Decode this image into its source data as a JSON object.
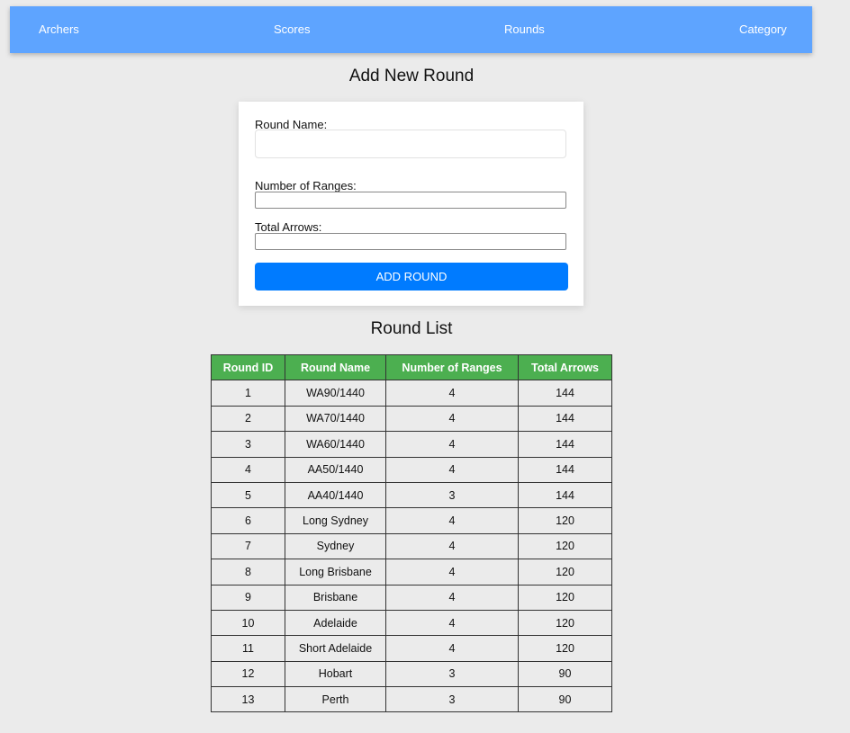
{
  "nav": {
    "items": [
      {
        "label": "Archers"
      },
      {
        "label": "Scores"
      },
      {
        "label": "Rounds"
      },
      {
        "label": "Category"
      }
    ]
  },
  "form": {
    "title": "Add New Round",
    "round_name_label": "Round Name:",
    "round_name_value": "",
    "ranges_label": "Number of Ranges:",
    "ranges_value": "",
    "arrows_label": "Total Arrows:",
    "arrows_value": "",
    "submit_label": "ADD ROUND"
  },
  "list": {
    "title": "Round List",
    "columns": [
      "Round ID",
      "Round Name",
      "Number of Ranges",
      "Total Arrows"
    ],
    "rows": [
      [
        "1",
        "WA90/1440",
        "4",
        "144"
      ],
      [
        "2",
        "WA70/1440",
        "4",
        "144"
      ],
      [
        "3",
        "WA60/1440",
        "4",
        "144"
      ],
      [
        "4",
        "AA50/1440",
        "4",
        "144"
      ],
      [
        "5",
        "AA40/1440",
        "3",
        "144"
      ],
      [
        "6",
        "Long Sydney",
        "4",
        "120"
      ],
      [
        "7",
        "Sydney",
        "4",
        "120"
      ],
      [
        "8",
        "Long Brisbane",
        "4",
        "120"
      ],
      [
        "9",
        "Brisbane",
        "4",
        "120"
      ],
      [
        "10",
        "Adelaide",
        "4",
        "120"
      ],
      [
        "11",
        "Short Adelaide",
        "4",
        "120"
      ],
      [
        "12",
        "Hobart",
        "3",
        "90"
      ],
      [
        "13",
        "Perth",
        "3",
        "90"
      ]
    ]
  },
  "colors": {
    "nav": "#5ea4ff",
    "button": "#007bff",
    "table_header": "#4caf50"
  }
}
